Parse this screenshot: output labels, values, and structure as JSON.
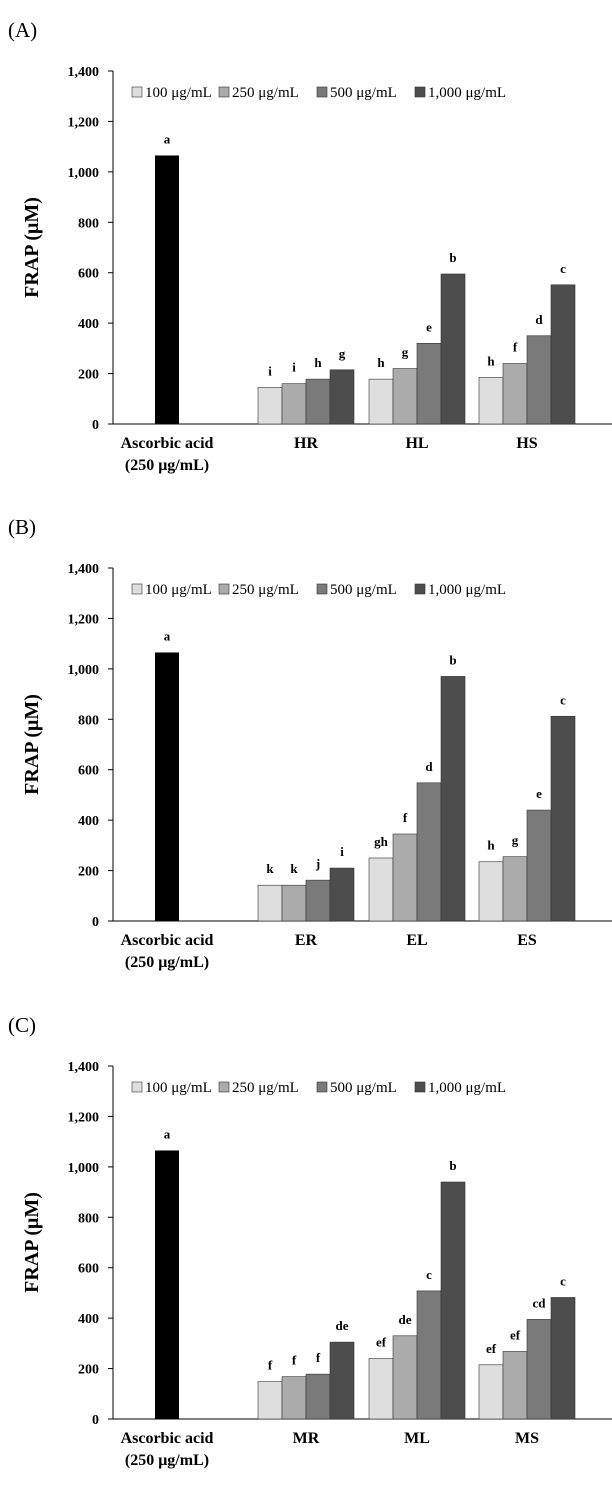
{
  "chart_data": [
    {
      "panel_label": "(A)",
      "type": "bar",
      "ylabel": "FRAP (μM)",
      "ylim": [
        0,
        1400
      ],
      "yticks": [
        "0",
        "200",
        "400",
        "600",
        "800",
        "1,000",
        "1,200",
        "1,400"
      ],
      "legend": [
        "100 μg/mL",
        "250 μg/mL",
        "500 μg/mL",
        "1,000 μg/mL"
      ],
      "legend_position": "top",
      "control": {
        "label_line1": "Ascorbic acid",
        "label_line2": "(250 μg/mL)",
        "value": 1065,
        "letter": "a"
      },
      "groups": [
        {
          "name": "HR",
          "values": [
            145,
            160,
            178,
            215
          ],
          "letters": [
            "i",
            "i",
            "h",
            "g"
          ]
        },
        {
          "name": "HL",
          "values": [
            178,
            220,
            320,
            595
          ],
          "letters": [
            "h",
            "g",
            "e",
            "b"
          ]
        },
        {
          "name": "HS",
          "values": [
            185,
            240,
            350,
            552
          ],
          "letters": [
            "h",
            "f",
            "d",
            "c"
          ]
        }
      ]
    },
    {
      "panel_label": "(B)",
      "type": "bar",
      "ylabel": "FRAP (μM)",
      "ylim": [
        0,
        1400
      ],
      "yticks": [
        "0",
        "200",
        "400",
        "600",
        "800",
        "1,000",
        "1,200",
        "1,400"
      ],
      "legend": [
        "100 μg/mL",
        "250 μg/mL",
        "500 μg/mL",
        "1,000 μg/mL"
      ],
      "legend_position": "top",
      "control": {
        "label_line1": "Ascorbic acid",
        "label_line2": "(250 μg/mL)",
        "value": 1065,
        "letter": "a"
      },
      "groups": [
        {
          "name": "ER",
          "values": [
            142,
            142,
            162,
            210
          ],
          "letters": [
            "k",
            "k",
            "j",
            "i"
          ]
        },
        {
          "name": "EL",
          "values": [
            250,
            345,
            548,
            970
          ],
          "letters": [
            "gh",
            "f",
            "d",
            "b"
          ]
        },
        {
          "name": "ES",
          "values": [
            235,
            255,
            440,
            812
          ],
          "letters": [
            "h",
            "g",
            "e",
            "c"
          ]
        }
      ]
    },
    {
      "panel_label": "(C)",
      "type": "bar",
      "ylabel": "FRAP (μM)",
      "ylim": [
        0,
        1400
      ],
      "yticks": [
        "0",
        "200",
        "400",
        "600",
        "800",
        "1,000",
        "1,200",
        "1,400"
      ],
      "legend": [
        "100 μg/mL",
        "250 μg/mL",
        "500 μg/mL",
        "1,000 μg/mL"
      ],
      "legend_position": "top",
      "control": {
        "label_line1": "Ascorbic acid",
        "label_line2": "(250 μg/mL)",
        "value": 1065,
        "letter": "a"
      },
      "groups": [
        {
          "name": "MR",
          "values": [
            148,
            168,
            178,
            305
          ],
          "letters": [
            "f",
            "f",
            "f",
            "de"
          ]
        },
        {
          "name": "ML",
          "values": [
            240,
            330,
            508,
            940
          ],
          "letters": [
            "ef",
            "de",
            "c",
            "b"
          ]
        },
        {
          "name": "MS",
          "values": [
            215,
            268,
            395,
            482
          ],
          "letters": [
            "ef",
            "ef",
            "cd",
            "c"
          ]
        }
      ]
    }
  ],
  "colors": {
    "control": "#000000",
    "series": [
      "#dedede",
      "#ababab",
      "#7a7a7a",
      "#4d4d4d"
    ]
  }
}
